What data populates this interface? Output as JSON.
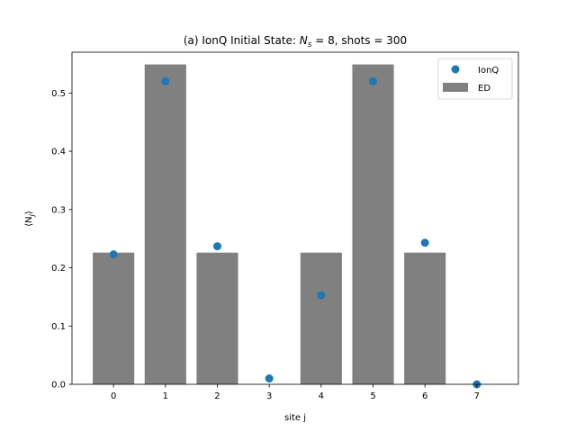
{
  "chart_data": {
    "type": "bar",
    "title_prefix": "(a) IonQ Initial State: ",
    "title_var_base": "N",
    "title_var_sub": "s",
    "title_suffix": " = 8, shots = 300",
    "xlabel": "site j",
    "ylabel_base": "⟨N",
    "ylabel_sub": "j",
    "ylabel_close": "⟩",
    "categories": [
      "0",
      "1",
      "2",
      "3",
      "4",
      "5",
      "6",
      "7"
    ],
    "x": [
      0,
      1,
      2,
      3,
      4,
      5,
      6,
      7
    ],
    "xlim": [
      -0.8,
      7.8
    ],
    "ylim": [
      0,
      0.57
    ],
    "yticks": [
      0.0,
      0.1,
      0.2,
      0.3,
      0.4,
      0.5
    ],
    "ytick_labels": [
      "0.0",
      "0.1",
      "0.2",
      "0.3",
      "0.4",
      "0.5"
    ],
    "grid": false,
    "legend_position": "top-right",
    "series": [
      {
        "name": "IonQ",
        "kind": "scatter",
        "color": "#1f77b4",
        "values": [
          0.223,
          0.52,
          0.237,
          0.01,
          0.153,
          0.52,
          0.243,
          0.0
        ]
      },
      {
        "name": "ED",
        "kind": "bar",
        "color": "#808080",
        "values": [
          0.226,
          0.549,
          0.226,
          0.0,
          0.226,
          0.549,
          0.226,
          0.0
        ]
      }
    ]
  }
}
